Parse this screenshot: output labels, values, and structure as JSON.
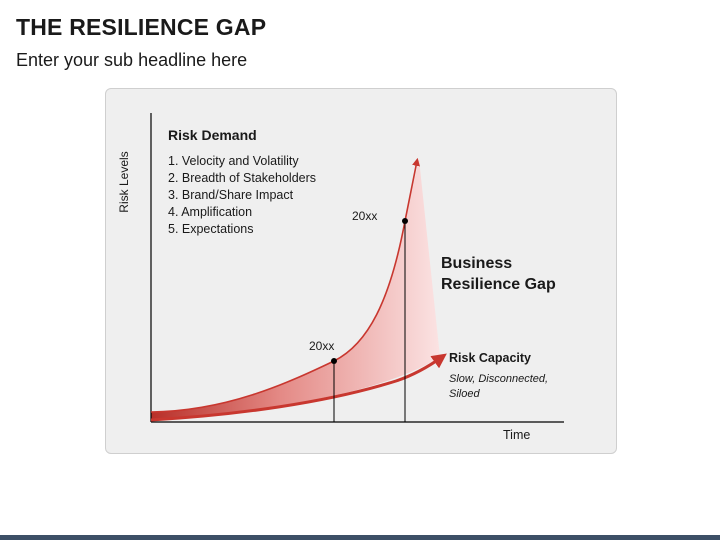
{
  "slide": {
    "title": "THE RESILIENCE GAP",
    "subtitle": "Enter your sub headline here"
  },
  "diagram": {
    "y_axis_label": "Risk Levels",
    "x_axis_label": "Time",
    "risk_demand": {
      "heading": "Risk Demand",
      "items": [
        "1. Velocity and Volatility",
        "2. Breadth of Stakeholders",
        "3. Brand/Share Impact",
        "4. Amplification",
        "5. Expectations"
      ]
    },
    "gap_label_line1": "Business",
    "gap_label_line2": "Resilience Gap",
    "risk_capacity": {
      "heading": "Risk Capacity",
      "description_line1": "Slow, Disconnected,",
      "description_line2": "Siloed"
    },
    "markers": [
      {
        "label": "20xx"
      },
      {
        "label": "20xx"
      }
    ],
    "colors": {
      "curve": "#c8372f",
      "gap_fill_light": "#f6c9c9",
      "axis": "#000000"
    }
  }
}
